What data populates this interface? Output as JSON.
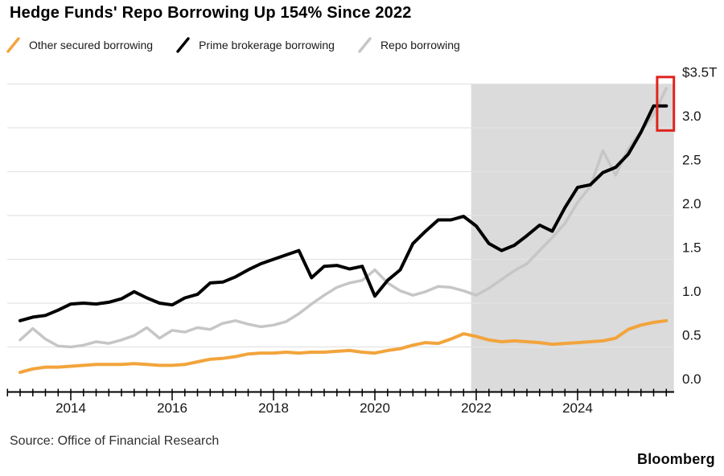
{
  "title": "Hedge Funds' Repo Borrowing Up 154% Since 2022",
  "source": "Source: Office of Financial Research",
  "brand": "Bloomberg",
  "legend": [
    {
      "label": "Other secured borrowing",
      "color": "#F2A43C"
    },
    {
      "label": "Prime brokerage borrowing",
      "color": "#000000"
    },
    {
      "label": "Repo borrowing",
      "color": "#C6C6C6"
    }
  ],
  "chart_data": {
    "type": "line",
    "title": "Hedge Funds' Repo Borrowing Up 154% Since 2022",
    "unit": "trillions of US dollars",
    "x_start_year": 2013.0,
    "x_step_years": 0.25,
    "x_end_year": 2025.75,
    "x_ticks_labeled": [
      2014,
      2016,
      2018,
      2020,
      2022,
      2024
    ],
    "ylim": [
      0.0,
      3.5
    ],
    "y_ticks": [
      0.0,
      0.5,
      1.0,
      1.5,
      2.0,
      2.5,
      3.0,
      3.5
    ],
    "y_tick_labels": [
      "0.0",
      "0.5",
      "1.0",
      "1.5",
      "2.0",
      "2.5",
      "3.0",
      "$3.5T"
    ],
    "grid": true,
    "legend_position": "top-left",
    "colors": {
      "grid": "#E3E3E3",
      "axis": "#000000",
      "tick_text": "#161616",
      "shade": "#DBDBDB",
      "highlight": "#E0231D"
    },
    "shaded_region": {
      "from_year": 2021.9,
      "to_year": 2025.9,
      "color": "#DBDBDB",
      "meaning": "period since 2022"
    },
    "highlight_box": {
      "x_from_year": 2025.57,
      "x_to_year": 2025.9,
      "y_from_value": 2.97,
      "y_to_value": 3.58,
      "color": "#E0231D",
      "meaning": "latest repo and prime brokerage readings"
    },
    "draw_order": [
      0,
      2,
      1
    ],
    "series": [
      {
        "name": "Other secured borrowing",
        "color": "#F2A43C",
        "stroke_width": 4,
        "values": [
          0.21,
          0.25,
          0.27,
          0.27,
          0.28,
          0.29,
          0.3,
          0.3,
          0.3,
          0.31,
          0.3,
          0.29,
          0.29,
          0.3,
          0.33,
          0.36,
          0.37,
          0.39,
          0.42,
          0.43,
          0.43,
          0.44,
          0.43,
          0.44,
          0.44,
          0.45,
          0.46,
          0.44,
          0.43,
          0.46,
          0.48,
          0.52,
          0.55,
          0.54,
          0.59,
          0.65,
          0.62,
          0.58,
          0.56,
          0.57,
          0.56,
          0.55,
          0.53,
          0.54,
          0.55,
          0.56,
          0.57,
          0.6,
          0.7,
          0.75,
          0.78,
          0.8
        ]
      },
      {
        "name": "Prime brokerage borrowing",
        "color": "#000000",
        "stroke_width": 4,
        "values": [
          0.8,
          0.84,
          0.86,
          0.92,
          0.99,
          1.0,
          0.99,
          1.01,
          1.05,
          1.13,
          1.06,
          1.0,
          0.98,
          1.06,
          1.1,
          1.23,
          1.24,
          1.3,
          1.38,
          1.45,
          1.5,
          1.55,
          1.6,
          1.29,
          1.42,
          1.43,
          1.39,
          1.42,
          1.08,
          1.26,
          1.38,
          1.68,
          1.82,
          1.95,
          1.95,
          1.99,
          1.88,
          1.68,
          1.6,
          1.66,
          1.77,
          1.89,
          1.82,
          2.09,
          2.32,
          2.35,
          2.49,
          2.55,
          2.7,
          2.95,
          3.25,
          3.25
        ]
      },
      {
        "name": "Repo borrowing",
        "color": "#C6C6C6",
        "stroke_width": 3.5,
        "values": [
          0.58,
          0.71,
          0.59,
          0.51,
          0.5,
          0.52,
          0.56,
          0.54,
          0.58,
          0.63,
          0.72,
          0.6,
          0.69,
          0.67,
          0.72,
          0.7,
          0.77,
          0.8,
          0.76,
          0.73,
          0.75,
          0.79,
          0.88,
          0.99,
          1.09,
          1.18,
          1.23,
          1.26,
          1.38,
          1.23,
          1.14,
          1.09,
          1.13,
          1.19,
          1.18,
          1.14,
          1.09,
          1.17,
          1.27,
          1.37,
          1.45,
          1.6,
          1.75,
          1.91,
          2.15,
          2.33,
          2.74,
          2.46,
          2.76,
          2.96,
          3.15,
          3.45
        ]
      }
    ]
  }
}
